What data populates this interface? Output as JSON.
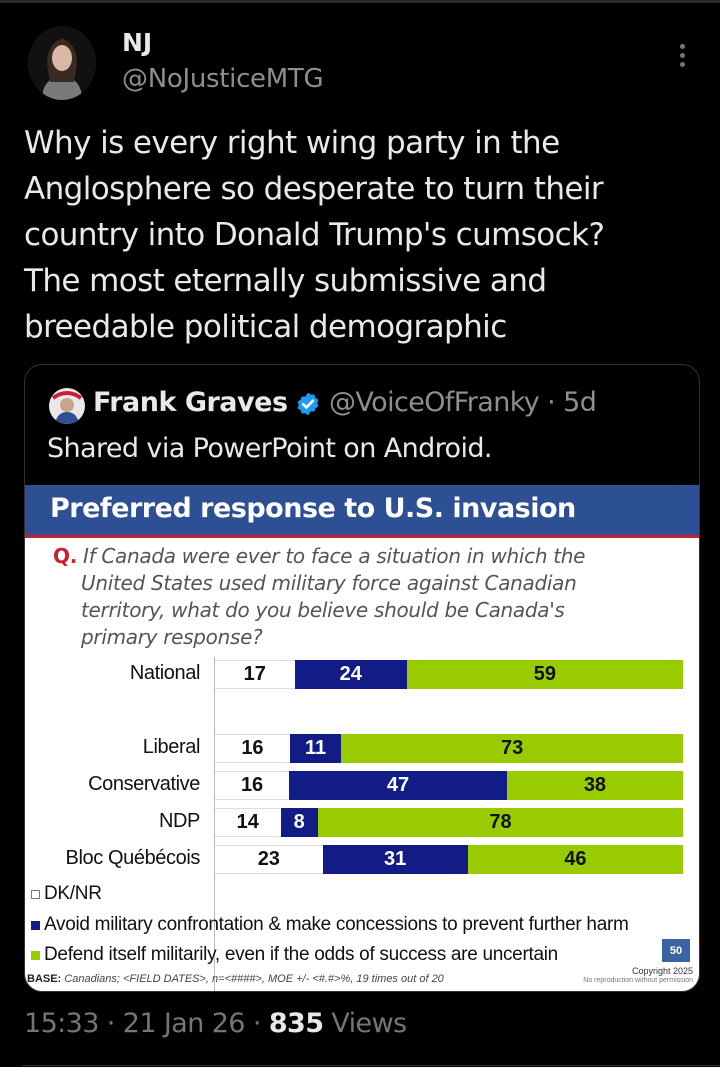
{
  "tweet": {
    "author_name": "NJ",
    "author_handle": "@NoJusticeMTG",
    "text_lines": [
      "Why is every right wing party in the",
      "Anglosphere so desperate to turn their",
      "country into Donald Trump's cumsock?",
      "The most eternally submissive and",
      "breedable political demographic"
    ],
    "time": "15:33",
    "date": "21 Jan 26",
    "views_count": "835",
    "views_label": "Views",
    "separator": "·"
  },
  "quoted_tweet": {
    "author_name": "Frank Graves",
    "verified": true,
    "author_handle": "@VoiceOfFranky",
    "age": "· 5d",
    "text": "Shared via PowerPoint on Android."
  },
  "slide": {
    "title": "Preferred response to U.S. invasion",
    "question_marker": "Q.",
    "question_lines": [
      "If Canada were ever to face a situation in which the",
      "United States used military force against Canadian",
      "territory, what do you believe should be Canada's",
      "primary response?"
    ],
    "page_number": "50",
    "copyright": "Copyright 2025",
    "no_reproduction": "No reproduction without permission",
    "base_label": "BASE:",
    "base_text": " Canadians; <FIELD DATES>, n=<####>, MOE +/- <#.#>%, 19 times out of 20"
  },
  "chart_data": {
    "type": "bar",
    "stacked": true,
    "orientation": "horizontal",
    "title": "Preferred response to U.S. invasion",
    "subtitle": "Q. If Canada were ever to face a situation in which the United States used military force against Canadian territory, what do you believe should be Canada's primary response?",
    "categories": [
      "National",
      "Liberal",
      "Conservative",
      "NDP",
      "Bloc Québécois"
    ],
    "series": [
      {
        "name": "DK/NR",
        "color": "#ffffff",
        "values": [
          17,
          16,
          16,
          14,
          23
        ]
      },
      {
        "name": "Avoid military confrontation & make concessions to prevent further harm",
        "color": "#121c87",
        "values": [
          24,
          11,
          47,
          8,
          31
        ]
      },
      {
        "name": "Defend itself militarily, even if the odds of success are uncertain",
        "color": "#99cc00",
        "values": [
          59,
          73,
          38,
          78,
          46
        ]
      }
    ],
    "xlabel": "",
    "ylabel": "",
    "xlim": [
      0,
      100
    ],
    "grid": false,
    "legend_position": "bottom-left",
    "data_labels": true
  },
  "legend": [
    {
      "label": "DK/NR",
      "color": "#ffffff"
    },
    {
      "label": "Avoid military confrontation & make concessions to prevent further harm",
      "color": "#121c87"
    },
    {
      "label": "Defend itself militarily, even if the odds of success are uncertain",
      "color": "#99cc00"
    }
  ],
  "colors": {
    "background": "#000000",
    "text_primary": "#e7e9ea",
    "text_secondary": "#71767b",
    "verified_blue": "#1d9bf0",
    "slide_header": "#2d4f93",
    "slide_accent_red": "#c8202f"
  }
}
